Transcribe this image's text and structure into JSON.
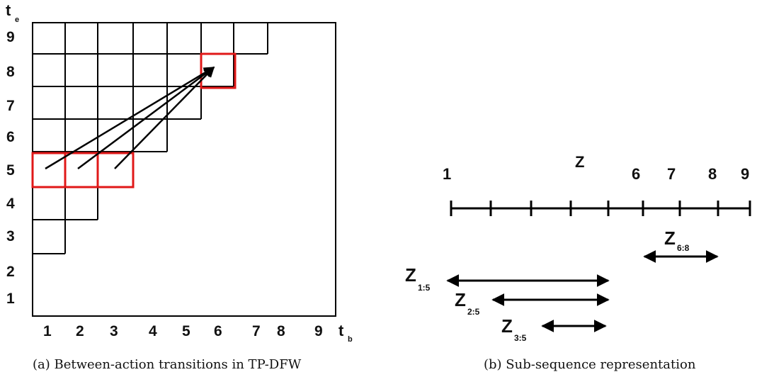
{
  "panel_a": {
    "axis_y_label": "t",
    "axis_y_sub": "e",
    "axis_x_label": "t",
    "axis_x_sub": "b",
    "row_labels": [
      "9",
      "8",
      "7",
      "6",
      "5",
      "4",
      "3",
      "2",
      "1"
    ],
    "col_labels": [
      "1",
      "2",
      "3",
      "4",
      "5",
      "6",
      "7",
      "8",
      "9"
    ],
    "highlight_color": "#e01818",
    "caption": "(a) Between-action transitions in TP-DFW"
  },
  "panel_b": {
    "sequence_label": "Z",
    "tick_labels": [
      "1",
      "6",
      "7",
      "8",
      "9"
    ],
    "spans": [
      {
        "label": "Z",
        "sub": "6:8"
      },
      {
        "label": "Z",
        "sub": "1:5"
      },
      {
        "label": "Z",
        "sub": "2:5"
      },
      {
        "label": "Z",
        "sub": "3:5"
      }
    ],
    "caption": "(b) Sub-sequence representation"
  }
}
